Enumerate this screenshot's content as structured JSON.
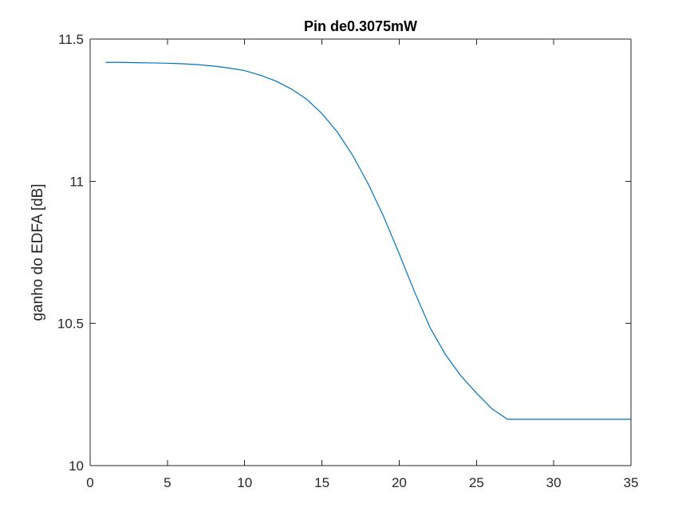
{
  "chart_data": {
    "type": "line",
    "title": "Pin de0.3075mW",
    "xlabel": "",
    "ylabel": "ganho do EDFA [dB]",
    "xlim": [
      0,
      35
    ],
    "ylim": [
      10,
      11.5
    ],
    "xticks": [
      "0",
      "5",
      "10",
      "15",
      "20",
      "25",
      "30",
      "35"
    ],
    "yticks": [
      "10",
      "10.5",
      "11",
      "11.5"
    ],
    "grid": false,
    "legend": "none",
    "colors": {
      "line": "#0072bd",
      "axes": "#262626",
      "background": "#ffffff"
    },
    "series": [
      {
        "x": [
          1,
          2,
          3,
          4,
          5,
          6,
          7,
          8,
          9,
          10,
          11,
          12,
          13,
          14,
          15,
          16,
          17,
          18,
          19,
          20,
          21,
          22,
          23,
          24,
          25,
          26,
          27,
          28,
          29,
          30,
          31,
          32,
          33,
          34,
          35
        ],
        "values": [
          11.418,
          11.418,
          11.417,
          11.416,
          11.415,
          11.413,
          11.41,
          11.405,
          11.398,
          11.389,
          11.373,
          11.353,
          11.325,
          11.289,
          11.238,
          11.173,
          11.09,
          10.99,
          10.875,
          10.745,
          10.61,
          10.485,
          10.39,
          10.315,
          10.255,
          10.2,
          10.163,
          10.163,
          10.163,
          10.163,
          10.163,
          10.163,
          10.163,
          10.163,
          10.163
        ]
      }
    ]
  }
}
